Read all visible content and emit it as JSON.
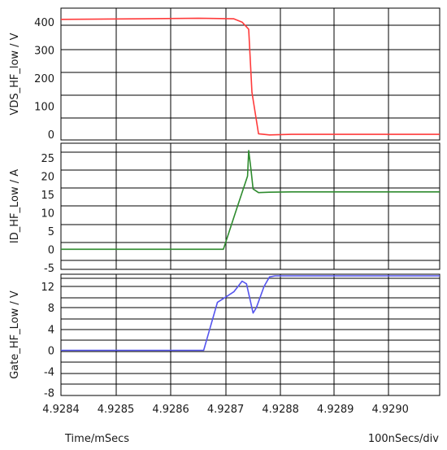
{
  "chart_data": [
    {
      "type": "line",
      "ylabel": "VDS_HF_low / V",
      "ylim": [
        -20,
        450
      ],
      "yticks": [
        0,
        100,
        200,
        300,
        400
      ],
      "xlim": [
        4.9284,
        4.92909
      ],
      "grid": true,
      "series": [
        {
          "color": "#ff3b3b",
          "x": [
            4.9284,
            4.92855,
            4.92865,
            4.92869,
            4.928715,
            4.92873,
            4.928742,
            4.928748,
            4.92876,
            4.92878,
            4.92882,
            4.92909
          ],
          "y": [
            410,
            412,
            414,
            413,
            412,
            400,
            375,
            150,
            2,
            -2,
            0,
            0
          ]
        }
      ]
    },
    {
      "type": "line",
      "ylabel": "ID_HF_Low / A",
      "ylim": [
        -5.5,
        29
      ],
      "yticks": [
        -5,
        0,
        5,
        10,
        15,
        20,
        25
      ],
      "xlim": [
        4.9284,
        4.92909
      ],
      "grid": true,
      "series": [
        {
          "color": "#2e8b2e",
          "x": [
            4.9284,
            4.92868,
            4.928696,
            4.92872,
            4.92874,
            4.928742,
            4.928746,
            4.92875,
            4.92876,
            4.92878,
            4.92882,
            4.92909
          ],
          "y": [
            0,
            0,
            0,
            11,
            20,
            27,
            22,
            16.5,
            15.5,
            15.6,
            15.7,
            15.7
          ]
        }
      ]
    },
    {
      "type": "line",
      "ylabel": "Gate_HF_Low / V",
      "ylim": [
        -8.5,
        14.3
      ],
      "yticks": [
        -8,
        -4,
        0,
        4,
        8,
        12
      ],
      "xlim": [
        4.9284,
        4.92909
      ],
      "grid": true,
      "series": [
        {
          "color": "#5555ee",
          "x": [
            4.9284,
            4.92866,
            4.928685,
            4.928697,
            4.928715,
            4.92873,
            4.928738,
            4.92875,
            4.928756,
            4.92877,
            4.92878,
            4.92879,
            4.92882,
            4.92909
          ],
          "y": [
            0,
            0,
            9,
            9.8,
            11,
            13,
            12.5,
            7,
            8,
            12,
            13.8,
            14,
            14,
            14
          ]
        }
      ]
    }
  ],
  "xticks": [
    "4.9284",
    "4.9285",
    "4.9286",
    "4.9287",
    "4.9288",
    "4.9289",
    "4.9290"
  ],
  "xtick_values": [
    4.9284,
    4.9285,
    4.9286,
    4.9287,
    4.9288,
    4.9289,
    4.929
  ],
  "footer": {
    "left": "Time/mSecs",
    "right": "100nSecs/div"
  }
}
